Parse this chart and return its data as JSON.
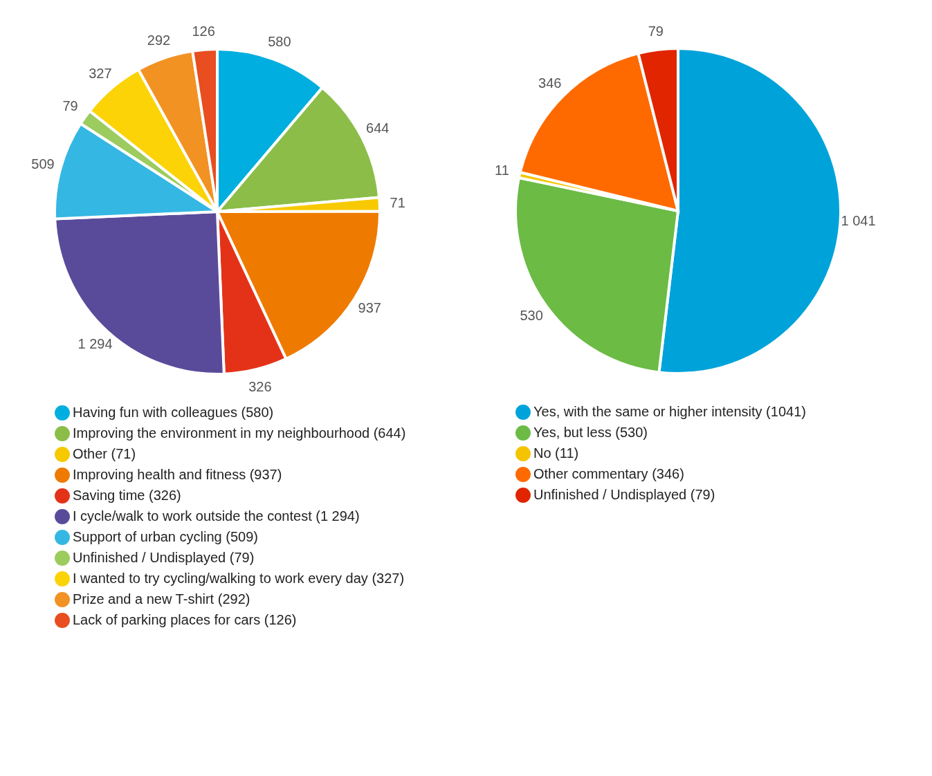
{
  "chart_data": [
    {
      "type": "pie",
      "categories": [
        "Having fun with colleagues (580)",
        "Improving the environment in my neighbourhood (644)",
        "Other (71)",
        "Improving health and fitness (937)",
        "Saving time (326)",
        "I cycle/walk to work outside the contest (1 294)",
        "Support of urban cycling (509)",
        "Unfinished / Undisplayed (79)",
        "I wanted to try cycling/walking to work every day (327)",
        "Prize and a new T-shirt (292)",
        "Lack of parking places for cars (126)"
      ],
      "values": [
        580,
        644,
        71,
        937,
        326,
        1294,
        509,
        79,
        327,
        292,
        126
      ],
      "value_labels": [
        "580",
        "644",
        "71",
        "937",
        "326",
        "1 294",
        "509",
        "79",
        "327",
        "292",
        "126"
      ],
      "colors": [
        "#00aedf",
        "#8bbd48",
        "#f7c900",
        "#ee7b00",
        "#e43219",
        "#5a4b9a",
        "#35b7e3",
        "#9ccb5e",
        "#fbd307",
        "#f29222",
        "#e84e1f"
      ],
      "legend": "bottom"
    },
    {
      "type": "pie",
      "categories": [
        "Yes, with the same or higher intensity (1041)",
        "Yes, but less (530)",
        "No (11)",
        "Other commentary (346)",
        "Unfinished / Undisplayed (79)"
      ],
      "values": [
        1041,
        530,
        11,
        346,
        79
      ],
      "value_labels": [
        "1 041",
        "530",
        "11",
        "346",
        "79"
      ],
      "colors": [
        "#00a3d9",
        "#6bbb45",
        "#f5c400",
        "#ff6a00",
        "#e02500"
      ],
      "legend": "bottom"
    }
  ]
}
